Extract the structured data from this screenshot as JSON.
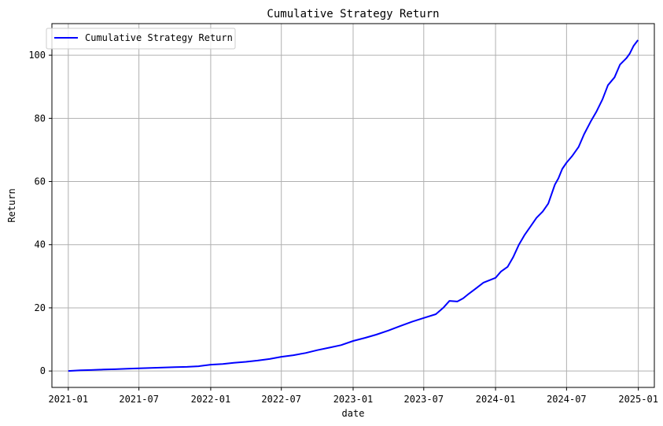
{
  "chart_data": {
    "type": "line",
    "title": "Cumulative Strategy Return",
    "xlabel": "date",
    "ylabel": "Return",
    "x_axis": {
      "kind": "date",
      "range": [
        "2020-11-20",
        "2025-02-11"
      ],
      "ticks": [
        "2021-01-01",
        "2021-07-01",
        "2022-01-01",
        "2022-07-01",
        "2023-01-01",
        "2023-07-01",
        "2024-01-01",
        "2024-07-01",
        "2025-01-01"
      ],
      "tick_labels": [
        "2021-01",
        "2021-07",
        "2022-01",
        "2022-07",
        "2023-01",
        "2023-07",
        "2024-01",
        "2024-07",
        "2025-01"
      ]
    },
    "y_axis": {
      "ylim": [
        -5.2,
        110
      ],
      "ticks": [
        0,
        20,
        40,
        60,
        80,
        100
      ],
      "tick_labels": [
        "0",
        "20",
        "40",
        "60",
        "80",
        "100"
      ]
    },
    "grid": true,
    "legend": {
      "placement": "top-left"
    },
    "series": [
      {
        "name": "Cumulative Strategy Return",
        "color": "#0000ff",
        "x": [
          "2021-01-01",
          "2021-02-01",
          "2021-03-01",
          "2021-04-01",
          "2021-05-01",
          "2021-06-01",
          "2021-07-01",
          "2021-08-01",
          "2021-09-01",
          "2021-10-01",
          "2021-11-01",
          "2021-12-01",
          "2022-01-01",
          "2022-02-01",
          "2022-03-01",
          "2022-04-01",
          "2022-05-01",
          "2022-06-01",
          "2022-07-01",
          "2022-08-01",
          "2022-09-01",
          "2022-10-01",
          "2022-11-01",
          "2022-12-01",
          "2023-01-01",
          "2023-02-01",
          "2023-03-01",
          "2023-04-01",
          "2023-05-01",
          "2023-06-01",
          "2023-07-01",
          "2023-08-01",
          "2023-08-20",
          "2023-09-05",
          "2023-09-25",
          "2023-10-10",
          "2023-10-25",
          "2023-11-10",
          "2023-12-01",
          "2024-01-01",
          "2024-01-15",
          "2024-02-01",
          "2024-02-15",
          "2024-03-01",
          "2024-03-15",
          "2024-04-01",
          "2024-04-15",
          "2024-05-01",
          "2024-05-15",
          "2024-06-01",
          "2024-06-10",
          "2024-06-20",
          "2024-07-01",
          "2024-07-15",
          "2024-08-01",
          "2024-08-15",
          "2024-09-01",
          "2024-09-15",
          "2024-10-01",
          "2024-10-15",
          "2024-11-01",
          "2024-11-15",
          "2024-12-01",
          "2024-12-10",
          "2024-12-20",
          "2024-12-31"
        ],
        "y": [
          0.0,
          0.2,
          0.3,
          0.45,
          0.55,
          0.7,
          0.85,
          0.95,
          1.1,
          1.2,
          1.3,
          1.5,
          2.0,
          2.2,
          2.6,
          2.9,
          3.3,
          3.8,
          4.5,
          5.0,
          5.7,
          6.6,
          7.4,
          8.2,
          9.5,
          10.5,
          11.5,
          12.8,
          14.2,
          15.6,
          16.8,
          18.0,
          20.0,
          22.2,
          22.0,
          23.0,
          24.5,
          26.0,
          28.0,
          29.5,
          31.5,
          33.0,
          36.0,
          40.0,
          43.0,
          46.0,
          48.5,
          50.5,
          53.0,
          59.0,
          61.0,
          64.0,
          66.0,
          68.0,
          71.0,
          75.0,
          79.0,
          82.0,
          86.0,
          90.5,
          93.0,
          97.0,
          99.0,
          100.5,
          103.0,
          104.8
        ]
      }
    ]
  }
}
